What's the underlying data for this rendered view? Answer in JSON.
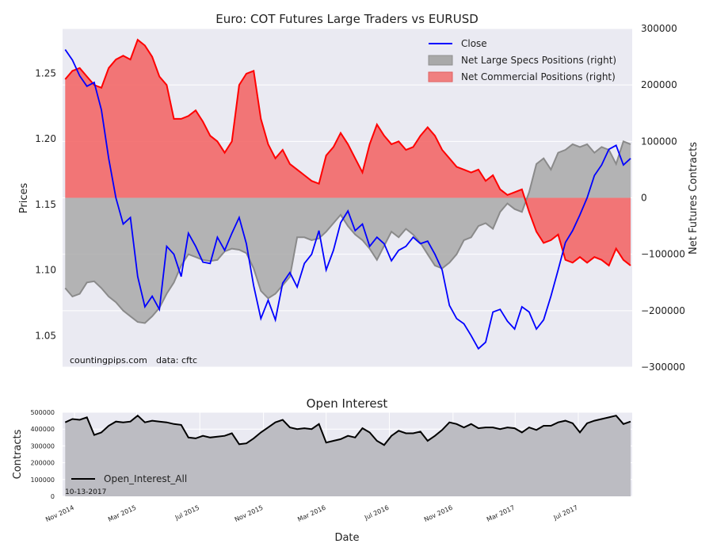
{
  "chart_data": [
    {
      "type": "line",
      "title": "Euro: COT Futures Large Traders vs EURUSD",
      "xlabel": "",
      "ylabel": "Prices",
      "y2label": "Net Futures Contracts",
      "ylim": [
        1.026,
        1.284
      ],
      "y2lim": [
        -300000,
        300000
      ],
      "yticks": [
        "1.05",
        "1.10",
        "1.15",
        "1.20",
        "1.25"
      ],
      "y2ticks": [
        "300000",
        "200000",
        "100000",
        "0",
        "−100000",
        "−200000",
        "−300000"
      ],
      "grid": true,
      "legend": "top-right",
      "legend_entries": [
        "Close",
        "Net Large Specs Positions (right)",
        "Net Commercial Positions (right)"
      ],
      "colors": {
        "close": "#0000ff",
        "specs": "#a9a9a9",
        "commercial": "#ff0000",
        "background": "#eaeaf2"
      },
      "x": [
        "2014-10-14",
        "2014-10-28",
        "2014-11-11",
        "2014-11-25",
        "2014-12-09",
        "2014-12-23",
        "2015-01-06",
        "2015-01-20",
        "2015-02-03",
        "2015-02-17",
        "2015-03-03",
        "2015-03-17",
        "2015-03-31",
        "2015-04-14",
        "2015-04-28",
        "2015-05-12",
        "2015-05-26",
        "2015-06-09",
        "2015-06-23",
        "2015-07-07",
        "2015-07-21",
        "2015-08-04",
        "2015-08-18",
        "2015-09-01",
        "2015-09-15",
        "2015-09-29",
        "2015-10-13",
        "2015-10-27",
        "2015-11-10",
        "2015-11-24",
        "2015-12-08",
        "2015-12-22",
        "2016-01-05",
        "2016-01-19",
        "2016-02-02",
        "2016-02-16",
        "2016-03-01",
        "2016-03-15",
        "2016-03-29",
        "2016-04-12",
        "2016-04-26",
        "2016-05-10",
        "2016-05-24",
        "2016-06-07",
        "2016-06-21",
        "2016-07-05",
        "2016-07-19",
        "2016-08-02",
        "2016-08-16",
        "2016-08-30",
        "2016-09-13",
        "2016-09-27",
        "2016-10-11",
        "2016-10-25",
        "2016-11-08",
        "2016-11-22",
        "2016-12-06",
        "2016-12-20",
        "2017-01-03",
        "2017-01-17",
        "2017-01-31",
        "2017-02-14",
        "2017-02-28",
        "2017-03-14",
        "2017-03-28",
        "2017-04-11",
        "2017-04-25",
        "2017-05-09",
        "2017-05-23",
        "2017-06-06",
        "2017-06-20",
        "2017-07-04",
        "2017-07-18",
        "2017-08-01",
        "2017-08-15",
        "2017-08-29",
        "2017-09-12",
        "2017-09-26",
        "2017-10-10"
      ],
      "series": [
        {
          "name": "Close",
          "axis": "left",
          "values": [
            1.268,
            1.26,
            1.248,
            1.24,
            1.243,
            1.222,
            1.185,
            1.155,
            1.135,
            1.14,
            1.095,
            1.072,
            1.08,
            1.07,
            1.118,
            1.112,
            1.095,
            1.128,
            1.118,
            1.106,
            1.105,
            1.125,
            1.115,
            1.128,
            1.14,
            1.12,
            1.088,
            1.063,
            1.077,
            1.062,
            1.09,
            1.098,
            1.087,
            1.105,
            1.112,
            1.13,
            1.1,
            1.115,
            1.136,
            1.145,
            1.13,
            1.135,
            1.118,
            1.125,
            1.12,
            1.107,
            1.115,
            1.118,
            1.125,
            1.12,
            1.122,
            1.112,
            1.1,
            1.073,
            1.063,
            1.059,
            1.05,
            1.04,
            1.045,
            1.068,
            1.07,
            1.061,
            1.055,
            1.072,
            1.068,
            1.055,
            1.062,
            1.08,
            1.1,
            1.121,
            1.13,
            1.142,
            1.155,
            1.172,
            1.18,
            1.192,
            1.195,
            1.18,
            1.185
          ]
        },
        {
          "name": "Net Large Specs Positions (right)",
          "axis": "right",
          "values": [
            -160000,
            -175000,
            -170000,
            -150000,
            -148000,
            -160000,
            -175000,
            -185000,
            -200000,
            -210000,
            -220000,
            -222000,
            -210000,
            -195000,
            -170000,
            -150000,
            -120000,
            -100000,
            -105000,
            -110000,
            -112000,
            -110000,
            -95000,
            -90000,
            -92000,
            -98000,
            -125000,
            -165000,
            -178000,
            -170000,
            -155000,
            -140000,
            -70000,
            -70000,
            -75000,
            -72000,
            -60000,
            -45000,
            -30000,
            -50000,
            -65000,
            -75000,
            -90000,
            -110000,
            -85000,
            -60000,
            -70000,
            -55000,
            -65000,
            -80000,
            -100000,
            -120000,
            -125000,
            -115000,
            -100000,
            -75000,
            -70000,
            -50000,
            -45000,
            -55000,
            -25000,
            -10000,
            -20000,
            -25000,
            10000,
            60000,
            70000,
            50000,
            80000,
            85000,
            95000,
            90000,
            95000,
            80000,
            90000,
            85000,
            60000,
            100000,
            95000
          ]
        },
        {
          "name": "Net Commercial Positions (right)",
          "axis": "right",
          "values": [
            210000,
            225000,
            230000,
            215000,
            200000,
            195000,
            230000,
            245000,
            252000,
            245000,
            280000,
            270000,
            250000,
            215000,
            200000,
            140000,
            140000,
            145000,
            155000,
            135000,
            110000,
            100000,
            80000,
            100000,
            200000,
            220000,
            225000,
            140000,
            95000,
            70000,
            85000,
            60000,
            50000,
            40000,
            30000,
            25000,
            75000,
            90000,
            115000,
            95000,
            70000,
            45000,
            95000,
            130000,
            110000,
            95000,
            100000,
            85000,
            90000,
            110000,
            125000,
            110000,
            85000,
            70000,
            55000,
            50000,
            45000,
            50000,
            30000,
            40000,
            15000,
            5000,
            10000,
            15000,
            -25000,
            -60000,
            -80000,
            -75000,
            -65000,
            -110000,
            -115000,
            -105000,
            -115000,
            -105000,
            -110000,
            -120000,
            -90000,
            -110000,
            -120000
          ]
        }
      ]
    },
    {
      "type": "area",
      "title": "Open Interest",
      "xlabel": "Date",
      "ylabel": "Contracts",
      "ylim": [
        0,
        500000
      ],
      "yticks": [
        "0",
        "100000",
        "200000",
        "300000",
        "400000",
        "500000"
      ],
      "xticks": [
        "Nov 2014",
        "Mar 2015",
        "Jul 2015",
        "Nov 2015",
        "Mar 2016",
        "Jul 2016",
        "Nov 2016",
        "Mar 2017",
        "Jul 2017"
      ],
      "grid": true,
      "legend": "lower-left",
      "legend_entries": [
        "Open_Interest_All"
      ],
      "colors": {
        "line": "#000000",
        "fill": "#bcbcc2"
      },
      "x": [
        "2014-10-14",
        "2014-10-28",
        "2014-11-11",
        "2014-11-25",
        "2014-12-09",
        "2014-12-23",
        "2015-01-06",
        "2015-01-20",
        "2015-02-03",
        "2015-02-17",
        "2015-03-03",
        "2015-03-17",
        "2015-03-31",
        "2015-04-14",
        "2015-04-28",
        "2015-05-12",
        "2015-05-26",
        "2015-06-09",
        "2015-06-23",
        "2015-07-07",
        "2015-07-21",
        "2015-08-04",
        "2015-08-18",
        "2015-09-01",
        "2015-09-15",
        "2015-09-29",
        "2015-10-13",
        "2015-10-27",
        "2015-11-10",
        "2015-11-24",
        "2015-12-08",
        "2015-12-22",
        "2016-01-05",
        "2016-01-19",
        "2016-02-02",
        "2016-02-16",
        "2016-03-01",
        "2016-03-15",
        "2016-03-29",
        "2016-04-12",
        "2016-04-26",
        "2016-05-10",
        "2016-05-24",
        "2016-06-07",
        "2016-06-21",
        "2016-07-05",
        "2016-07-19",
        "2016-08-02",
        "2016-08-16",
        "2016-08-30",
        "2016-09-13",
        "2016-09-27",
        "2016-10-11",
        "2016-10-25",
        "2016-11-08",
        "2016-11-22",
        "2016-12-06",
        "2016-12-20",
        "2017-01-03",
        "2017-01-17",
        "2017-01-31",
        "2017-02-14",
        "2017-02-28",
        "2017-03-14",
        "2017-03-28",
        "2017-04-11",
        "2017-04-25",
        "2017-05-09",
        "2017-05-23",
        "2017-06-06",
        "2017-06-20",
        "2017-07-04",
        "2017-07-18",
        "2017-08-01",
        "2017-08-15",
        "2017-08-29",
        "2017-09-12",
        "2017-09-26",
        "2017-10-10"
      ],
      "series": [
        {
          "name": "Open_Interest_All",
          "values": [
            440000,
            460000,
            455000,
            470000,
            365000,
            380000,
            420000,
            445000,
            440000,
            445000,
            480000,
            440000,
            450000,
            445000,
            440000,
            430000,
            425000,
            350000,
            345000,
            360000,
            350000,
            355000,
            360000,
            375000,
            310000,
            315000,
            345000,
            380000,
            410000,
            440000,
            455000,
            410000,
            400000,
            405000,
            400000,
            430000,
            320000,
            330000,
            340000,
            360000,
            350000,
            405000,
            380000,
            330000,
            305000,
            360000,
            390000,
            375000,
            375000,
            385000,
            330000,
            360000,
            395000,
            440000,
            430000,
            410000,
            430000,
            405000,
            410000,
            410000,
            400000,
            410000,
            405000,
            380000,
            410000,
            395000,
            420000,
            420000,
            440000,
            450000,
            435000,
            380000,
            435000,
            450000,
            460000,
            470000,
            480000,
            430000,
            445000
          ]
        }
      ]
    }
  ],
  "annotations": {
    "source_site": "countingpips.com",
    "source_data": "data: cftc",
    "report_date": "10-13-2017"
  }
}
